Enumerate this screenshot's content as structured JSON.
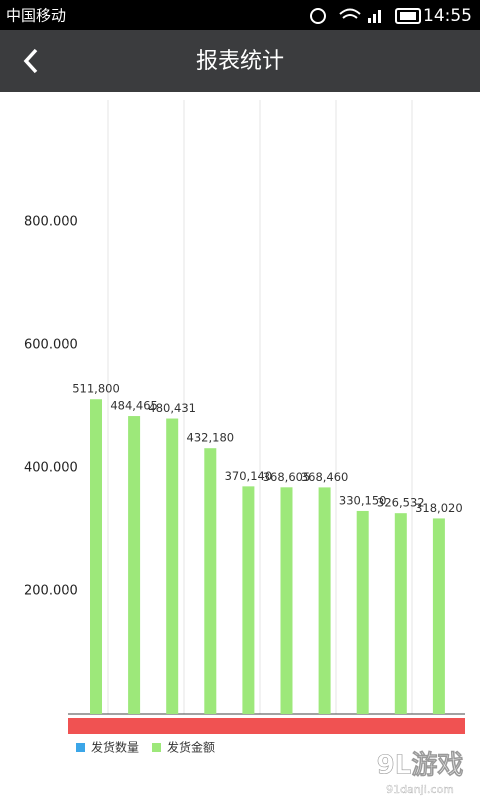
{
  "status_bar": {
    "carrier": "中国移动",
    "time": "14:55"
  },
  "app_bar": {
    "title": "报表统计"
  },
  "chart_data": {
    "type": "bar",
    "series": [
      {
        "name": "发货金额",
        "color": "#9de87a",
        "values": [
          511800,
          484465,
          480431,
          432180,
          370140,
          368605,
          368460,
          330150,
          326532,
          318020
        ],
        "value_labels": [
          "511,800",
          "484,465",
          "480,431",
          "432,180",
          "370,140",
          "368,605",
          "368,460",
          "330,150",
          "326,532",
          "318,020"
        ]
      }
    ],
    "legend": [
      {
        "name": "发货数量",
        "color": "#3ba6e8"
      },
      {
        "name": "发货金额",
        "color": "#9de87a"
      }
    ],
    "ylim": [
      0,
      1000000
    ],
    "yticks": [
      {
        "value": 200000,
        "label": "200.000"
      },
      {
        "value": 400000,
        "label": "400.000"
      },
      {
        "value": 600000,
        "label": "600.000"
      },
      {
        "value": 800000,
        "label": "800.000"
      }
    ]
  },
  "watermark": {
    "logo": "9L游戏",
    "site": "91danji.com"
  }
}
